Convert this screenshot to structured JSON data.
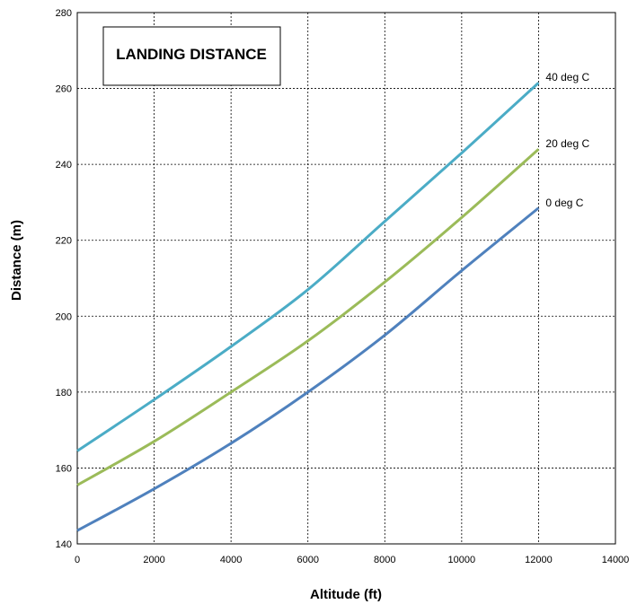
{
  "chart_data": {
    "type": "line",
    "title": "LANDING DISTANCE",
    "xlabel": "Altitude (ft)",
    "ylabel": "Distance (m)",
    "xlim": [
      0,
      14000
    ],
    "ylim": [
      140,
      280
    ],
    "xticks": [
      0,
      2000,
      4000,
      6000,
      8000,
      10000,
      12000,
      14000
    ],
    "yticks": [
      140,
      160,
      180,
      200,
      220,
      240,
      260,
      280
    ],
    "grid": true,
    "legend": "none",
    "series": [
      {
        "name": "40 deg C",
        "color": "#4bacc6",
        "x": [
          0,
          2000,
          4000,
          6000,
          8000,
          10000,
          12000
        ],
        "y": [
          164.5,
          178,
          192,
          207,
          225,
          243,
          261.5
        ]
      },
      {
        "name": "20 deg C",
        "color": "#9bbb59",
        "x": [
          0,
          2000,
          4000,
          6000,
          8000,
          10000,
          12000
        ],
        "y": [
          155.5,
          167,
          180,
          193.5,
          209,
          226,
          244
        ]
      },
      {
        "name": "0 deg C",
        "color": "#4f81bd",
        "x": [
          0,
          2000,
          4000,
          6000,
          8000,
          10000,
          12000
        ],
        "y": [
          143.5,
          154.5,
          166.5,
          180,
          195,
          212,
          228.5
        ]
      }
    ]
  }
}
